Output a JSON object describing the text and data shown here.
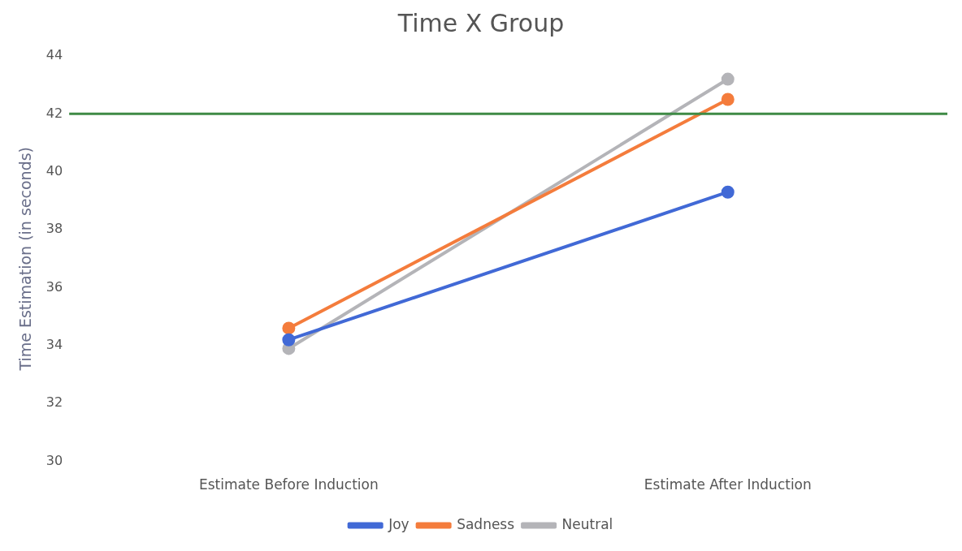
{
  "chart_data": {
    "type": "line",
    "title": "Time X Group",
    "ylabel": "Time Estimation (in seconds)",
    "categories": [
      "Estimate Before Induction",
      "Estimate After Induction"
    ],
    "series": [
      {
        "name": "Joy",
        "color": "#4169d6",
        "values": [
          34.2,
          39.3
        ]
      },
      {
        "name": "Sadness",
        "color": "#f47c3c",
        "values": [
          34.6,
          42.5
        ]
      },
      {
        "name": "Neutral",
        "color": "#b4b4b8",
        "values": [
          33.9,
          43.2
        ]
      }
    ],
    "ylim": [
      30,
      44
    ],
    "yticks": [
      30,
      32,
      34,
      36,
      38,
      40,
      42,
      44
    ],
    "ref_lines": [
      {
        "axis": "y",
        "value": 42,
        "color": "#3e8a45"
      }
    ],
    "legend": "bottom",
    "marker": "circle",
    "grid": false
  }
}
